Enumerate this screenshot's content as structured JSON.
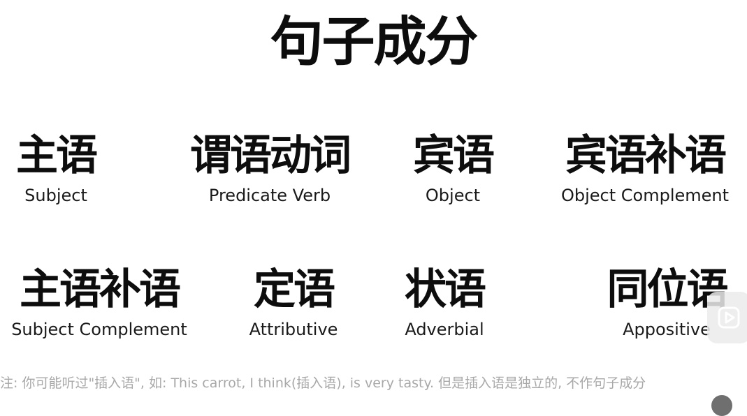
{
  "title": "句子成分",
  "rows": [
    [
      {
        "zh": "主语",
        "en": "Subject"
      },
      {
        "zh": "谓语动词",
        "en": "Predicate Verb"
      },
      {
        "zh": "宾语",
        "en": "Object"
      },
      {
        "zh": "宾语补语",
        "en": "Object Complement"
      }
    ],
    [
      {
        "zh": "主语补语",
        "en": "Subject Complement"
      },
      {
        "zh": "定语",
        "en": "Attributive"
      },
      {
        "zh": "状语",
        "en": "Adverbial"
      },
      {
        "zh": "同位语",
        "en": "Appositive"
      }
    ]
  ],
  "note": "注: 你可能听过\"插入语\", 如: This carrot, I think(插入语), is very tasty. 但是插入语是独立的, 不作句子成分",
  "overlay": {
    "icon": "play-icon"
  }
}
